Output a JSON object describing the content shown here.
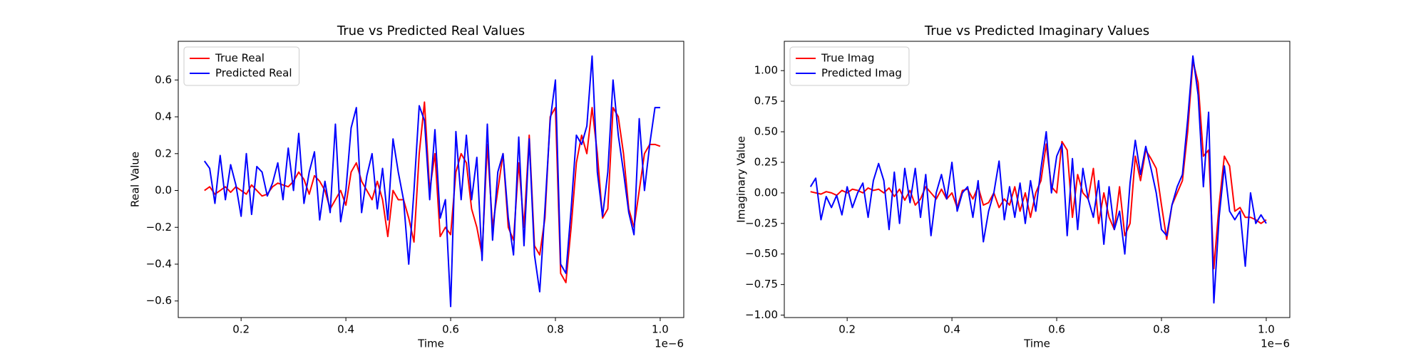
{
  "chart_data": [
    {
      "type": "line",
      "title": "True vs Predicted Real Values",
      "x_label": "Time",
      "y_label": "Real Value",
      "x_offset_label": "1e−6",
      "x": [
        0.13,
        0.14,
        0.15,
        0.16,
        0.17,
        0.18,
        0.19,
        0.2,
        0.21,
        0.22,
        0.23,
        0.24,
        0.25,
        0.26,
        0.27,
        0.28,
        0.29,
        0.3,
        0.31,
        0.32,
        0.33,
        0.34,
        0.35,
        0.36,
        0.37,
        0.38,
        0.39,
        0.4,
        0.41,
        0.42,
        0.43,
        0.44,
        0.45,
        0.46,
        0.47,
        0.48,
        0.49,
        0.5,
        0.51,
        0.52,
        0.53,
        0.54,
        0.55,
        0.56,
        0.57,
        0.58,
        0.59,
        0.6,
        0.61,
        0.62,
        0.63,
        0.64,
        0.65,
        0.66,
        0.67,
        0.68,
        0.69,
        0.7,
        0.71,
        0.72,
        0.73,
        0.74,
        0.75,
        0.76,
        0.77,
        0.78,
        0.79,
        0.8,
        0.81,
        0.82,
        0.83,
        0.84,
        0.85,
        0.86,
        0.87,
        0.88,
        0.89,
        0.9,
        0.91,
        0.92,
        0.93,
        0.94,
        0.95,
        0.96,
        0.97,
        0.98,
        0.99,
        1.0
      ],
      "series": [
        {
          "name": "True Real",
          "color": "#ff0000",
          "values": [
            0.0,
            0.02,
            -0.02,
            0.0,
            0.02,
            -0.01,
            0.02,
            0.0,
            -0.02,
            0.03,
            0.0,
            -0.03,
            -0.02,
            0.02,
            0.04,
            0.03,
            0.02,
            0.05,
            0.1,
            0.06,
            -0.02,
            0.08,
            0.05,
            0.0,
            -0.1,
            -0.05,
            0.0,
            -0.08,
            0.1,
            0.15,
            0.05,
            0.0,
            -0.05,
            0.05,
            -0.05,
            -0.25,
            0.0,
            -0.05,
            -0.05,
            -0.15,
            -0.28,
            0.2,
            0.48,
            0.0,
            0.2,
            -0.25,
            -0.2,
            -0.24,
            0.1,
            0.2,
            0.15,
            -0.1,
            -0.2,
            -0.35,
            0.25,
            -0.2,
            0.0,
            0.2,
            -0.2,
            -0.27,
            0.15,
            -0.2,
            0.3,
            -0.3,
            -0.35,
            -0.15,
            0.4,
            0.45,
            -0.45,
            -0.5,
            -0.2,
            0.15,
            0.3,
            0.2,
            0.45,
            0.2,
            -0.15,
            -0.1,
            0.45,
            0.4,
            0.2,
            -0.1,
            -0.2,
            0.0,
            0.2,
            0.25,
            0.25,
            0.24
          ]
        },
        {
          "name": "Predicted Real",
          "color": "#0000ff",
          "values": [
            0.16,
            0.12,
            -0.07,
            0.19,
            -0.05,
            0.14,
            0.03,
            -0.14,
            0.2,
            -0.13,
            0.13,
            0.1,
            -0.03,
            0.04,
            0.15,
            -0.05,
            0.23,
            0.0,
            0.31,
            -0.07,
            0.1,
            0.21,
            -0.16,
            0.05,
            -0.12,
            0.36,
            -0.17,
            0.0,
            0.34,
            0.45,
            -0.12,
            0.08,
            0.2,
            -0.1,
            0.12,
            -0.16,
            0.28,
            0.1,
            -0.05,
            -0.4,
            0.0,
            0.46,
            0.38,
            -0.05,
            0.33,
            -0.15,
            -0.05,
            -0.63,
            0.32,
            -0.05,
            0.3,
            -0.05,
            0.18,
            -0.38,
            0.36,
            -0.27,
            0.1,
            0.2,
            -0.15,
            -0.35,
            0.29,
            -0.3,
            0.28,
            -0.35,
            -0.55,
            -0.1,
            0.38,
            0.6,
            -0.4,
            -0.45,
            -0.1,
            0.3,
            0.25,
            0.35,
            0.73,
            0.1,
            -0.14,
            0.1,
            0.6,
            0.3,
            0.1,
            -0.12,
            -0.24,
            0.39,
            0.0,
            0.25,
            0.45,
            0.45
          ]
        }
      ],
      "xlim": [
        0.08,
        1.045
      ],
      "xticks": [
        0.2,
        0.4,
        0.6,
        0.8,
        {
          "value": 1.0,
          "label": "1.0"
        }
      ],
      "ylim": [
        -0.69,
        0.81
      ],
      "yticks": [
        {
          "value": -0.6,
          "label": "−0.6"
        },
        {
          "value": -0.4,
          "label": "−0.4"
        },
        {
          "value": -0.2,
          "label": "−0.2"
        },
        {
          "value": 0,
          "label": "0.0"
        },
        0.2,
        0.4,
        0.6
      ],
      "legend": "upper left"
    },
    {
      "type": "line",
      "title": "True vs Predicted Imaginary Values",
      "x_label": "Time",
      "y_label": "Imaginary Value",
      "x_offset_label": "1e−6",
      "x": [
        0.13,
        0.14,
        0.15,
        0.16,
        0.17,
        0.18,
        0.19,
        0.2,
        0.21,
        0.22,
        0.23,
        0.24,
        0.25,
        0.26,
        0.27,
        0.28,
        0.29,
        0.3,
        0.31,
        0.32,
        0.33,
        0.34,
        0.35,
        0.36,
        0.37,
        0.38,
        0.39,
        0.4,
        0.41,
        0.42,
        0.43,
        0.44,
        0.45,
        0.46,
        0.47,
        0.48,
        0.49,
        0.5,
        0.51,
        0.52,
        0.53,
        0.54,
        0.55,
        0.56,
        0.57,
        0.58,
        0.59,
        0.6,
        0.61,
        0.62,
        0.63,
        0.64,
        0.65,
        0.66,
        0.67,
        0.68,
        0.69,
        0.7,
        0.71,
        0.72,
        0.73,
        0.74,
        0.75,
        0.76,
        0.77,
        0.78,
        0.79,
        0.8,
        0.81,
        0.82,
        0.83,
        0.84,
        0.85,
        0.86,
        0.87,
        0.88,
        0.89,
        0.9,
        0.91,
        0.92,
        0.93,
        0.94,
        0.95,
        0.96,
        0.97,
        0.98,
        0.99,
        1.0
      ],
      "series": [
        {
          "name": "True Imag",
          "color": "#ff0000",
          "values": [
            0.01,
            0.0,
            -0.01,
            0.01,
            0.0,
            -0.02,
            0.02,
            0.0,
            0.03,
            0.02,
            0.0,
            0.04,
            0.02,
            0.03,
            0.0,
            0.04,
            -0.03,
            0.03,
            -0.06,
            0.02,
            -0.1,
            -0.05,
            0.05,
            0.0,
            -0.05,
            0.03,
            -0.05,
            0.0,
            -0.12,
            0.02,
            0.03,
            -0.05,
            0.05,
            -0.1,
            -0.08,
            0.0,
            -0.12,
            -0.05,
            -0.1,
            0.05,
            -0.15,
            0.0,
            -0.2,
            0.0,
            0.1,
            0.4,
            0.05,
            0.0,
            0.42,
            0.35,
            -0.2,
            0.15,
            0.0,
            -0.05,
            0.2,
            -0.25,
            0.0,
            -0.2,
            -0.3,
            0.05,
            -0.35,
            -0.25,
            0.3,
            0.1,
            0.35,
            0.28,
            0.2,
            -0.1,
            -0.38,
            -0.1,
            0.0,
            0.1,
            0.5,
            1.08,
            0.9,
            0.3,
            0.35,
            -0.62,
            -0.1,
            0.3,
            0.22,
            -0.15,
            -0.12,
            -0.2,
            -0.2,
            -0.22,
            -0.25,
            -0.22
          ]
        },
        {
          "name": "Predicted Imag",
          "color": "#0000ff",
          "values": [
            0.05,
            0.12,
            -0.22,
            -0.03,
            -0.12,
            -0.02,
            -0.18,
            0.05,
            -0.12,
            0.0,
            0.08,
            -0.2,
            0.1,
            0.24,
            0.1,
            -0.3,
            0.17,
            -0.25,
            0.2,
            -0.08,
            0.2,
            -0.2,
            0.15,
            -0.35,
            0.0,
            0.15,
            -0.05,
            0.25,
            -0.15,
            0.0,
            0.05,
            -0.2,
            0.1,
            -0.4,
            -0.15,
            0.0,
            0.26,
            -0.22,
            0.05,
            -0.2,
            0.08,
            -0.25,
            0.1,
            -0.15,
            0.2,
            0.5,
            0.0,
            0.3,
            0.4,
            -0.35,
            0.28,
            -0.3,
            0.2,
            -0.05,
            -0.2,
            0.1,
            -0.42,
            0.05,
            -0.3,
            -0.15,
            -0.5,
            0.08,
            0.43,
            0.15,
            0.38,
            0.2,
            0.0,
            -0.3,
            -0.35,
            -0.1,
            0.05,
            0.15,
            0.6,
            1.12,
            0.8,
            0.05,
            0.66,
            -0.9,
            -0.2,
            0.22,
            -0.15,
            -0.22,
            -0.15,
            -0.6,
            0.0,
            -0.25,
            -0.18,
            -0.25
          ]
        }
      ],
      "xlim": [
        0.08,
        1.045
      ],
      "xticks": [
        0.2,
        0.4,
        0.6,
        0.8,
        {
          "value": 1.0,
          "label": "1.0"
        }
      ],
      "ylim": [
        -1.02,
        1.24
      ],
      "yticks": [
        {
          "value": -1,
          "label": "−1.00"
        },
        {
          "value": -0.75,
          "label": "−0.75"
        },
        {
          "value": -0.5,
          "label": "−0.50"
        },
        {
          "value": -0.25,
          "label": "−0.25"
        },
        {
          "value": 0,
          "label": "0.00"
        },
        0.25,
        {
          "value": 0.5,
          "label": "0.50"
        },
        0.75,
        {
          "value": 1,
          "label": "1.00"
        }
      ],
      "legend": "upper left"
    }
  ]
}
